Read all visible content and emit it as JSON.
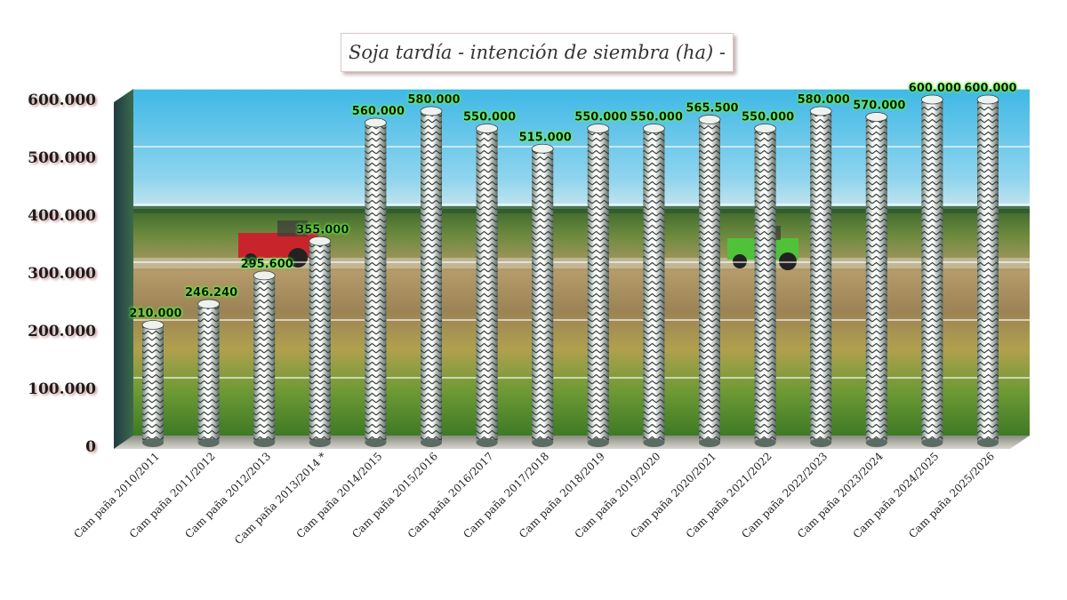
{
  "chart_data": {
    "type": "bar",
    "title": "Soja tardía - intención de siembra (ha) -",
    "xlabel": "",
    "ylabel": "",
    "ylim": [
      0,
      600000
    ],
    "yticks": [
      0,
      100000,
      200000,
      300000,
      400000,
      500000,
      600000
    ],
    "ytick_labels": [
      "0",
      "100.000",
      "200.000",
      "300.000",
      "400.000",
      "500.000",
      "600.000"
    ],
    "grid": true,
    "categories": [
      "Cam paña 2010/2011",
      "Cam paña 2011/2012",
      "Cam paña 2012/2013",
      "Cam paña 2013/2014 *",
      "Cam paña 2014/2015",
      "Cam paña 2015/2016",
      "Cam paña 2016/2017",
      "Cam paña 2017/2018",
      "Cam paña 2018/2019",
      "Cam paña 2019/2020",
      "Cam paña 2020/2021",
      "Cam paña 2021/2022",
      "Cam paña 2022/2023",
      "Cam paña 2023/2024",
      "Cam paña 2024/2025",
      "Cam paña 2025/2026"
    ],
    "values": [
      210000,
      246240,
      295600,
      355000,
      560000,
      580000,
      550000,
      515000,
      550000,
      550000,
      565500,
      550000,
      580000,
      570000,
      600000,
      600000
    ],
    "value_labels": [
      "210.000",
      "246.240",
      "295.600",
      "355.000",
      "560.000",
      "580.000",
      "550.000",
      "515.000",
      "550.000",
      "550.000",
      "565.500",
      "550.000",
      "580.000",
      "570.000",
      "600.000",
      "600.000"
    ]
  }
}
